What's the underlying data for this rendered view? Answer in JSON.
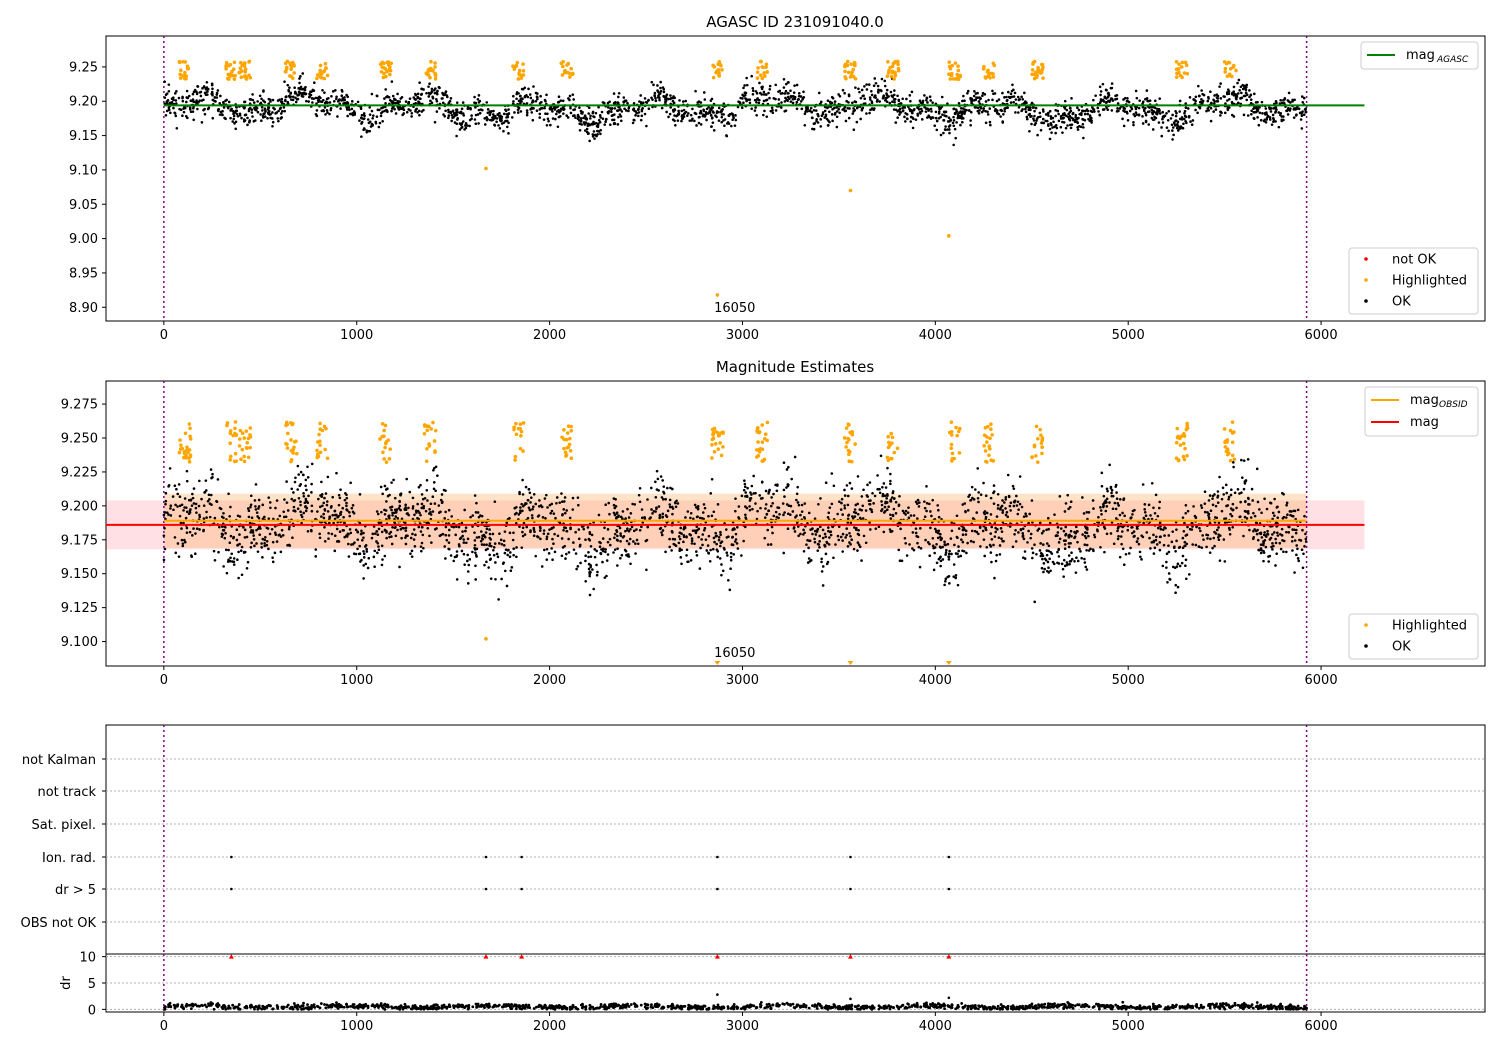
{
  "chart_data": [
    {
      "type": "scatter",
      "title": "AGASC ID 231091040.0",
      "xlabel": "",
      "ylabel": "",
      "xlim": [
        -300,
        6850
      ],
      "ylim": [
        8.88,
        9.295
      ],
      "xticks": [
        0,
        1000,
        2000,
        3000,
        4000,
        5000,
        6000
      ],
      "yticks": [
        8.9,
        8.95,
        9.0,
        9.05,
        9.1,
        9.15,
        9.2,
        9.25
      ],
      "ytick_labels": [
        "8.90",
        "8.95",
        "9.00",
        "9.05",
        "9.10",
        "9.15",
        "9.20",
        "9.25"
      ],
      "xtick_labels": [
        "0",
        "1000",
        "2000",
        "3000",
        "4000",
        "5000",
        "6000"
      ],
      "grid": false,
      "vlines": [
        0,
        5925
      ],
      "vline_color": "#800080",
      "hline": {
        "name": "mag_AGASC",
        "y": 9.194,
        "x_range": [
          0,
          6225
        ],
        "color": "#008000"
      },
      "obsid_annotation": {
        "text": "16050",
        "x": 2960
      },
      "legends": [
        {
          "placement": "upper right",
          "items": [
            {
              "label": "mag",
              "sub": "AGASC",
              "kind": "line",
              "color": "#008000"
            }
          ]
        },
        {
          "placement": "lower right",
          "items": [
            {
              "label": "not OK",
              "kind": "dot",
              "color": "#ff0000"
            },
            {
              "label": "Highlighted",
              "kind": "dot",
              "color": "#ffa500"
            },
            {
              "label": "OK",
              "kind": "dot",
              "color": "#000000"
            }
          ]
        }
      ],
      "series": [
        {
          "name": "OK",
          "color": "#000000",
          "x_range": [
            0,
            5925
          ],
          "band": [
            9.15,
            9.23
          ]
        },
        {
          "name": "Highlighted",
          "color": "#ffa500",
          "points": [
            [
              1670,
              9.102
            ],
            [
              3560,
              9.07
            ],
            [
              4070,
              9.004
            ],
            [
              2870,
              8.918
            ]
          ],
          "clusters": [
            110,
            350,
            420,
            660,
            820,
            1150,
            1380,
            1840,
            2090,
            2870,
            3100,
            3560,
            3780,
            4100,
            4280,
            4530,
            5280,
            5530
          ]
        }
      ]
    },
    {
      "type": "scatter",
      "title": "Magnitude Estimates",
      "xlim": [
        -300,
        6850
      ],
      "ylim": [
        9.082,
        9.292
      ],
      "xticks": [
        0,
        1000,
        2000,
        3000,
        4000,
        5000,
        6000
      ],
      "yticks": [
        9.1,
        9.125,
        9.15,
        9.175,
        9.2,
        9.225,
        9.25,
        9.275
      ],
      "ytick_labels": [
        "9.100",
        "9.125",
        "9.150",
        "9.175",
        "9.200",
        "9.225",
        "9.250",
        "9.275"
      ],
      "xtick_labels": [
        "0",
        "1000",
        "2000",
        "3000",
        "4000",
        "5000",
        "6000"
      ],
      "grid": false,
      "vlines": [
        0,
        5925
      ],
      "lines": [
        {
          "name": "mag_OBSID",
          "y": 9.189,
          "x_range": [
            0,
            5925
          ],
          "color": "#ffa500",
          "band": [
            9.169,
            9.209
          ]
        },
        {
          "name": "mag",
          "y": 9.186,
          "x_range": [
            -300,
            6225
          ],
          "color": "#ff0000",
          "band": [
            9.168,
            9.204
          ]
        }
      ],
      "obsid_annotation": {
        "text": "16050",
        "x": 2960
      },
      "off_scale_markers": [
        2870,
        3560,
        4070
      ],
      "legends": [
        {
          "placement": "upper right",
          "items": [
            {
              "label": "mag",
              "sub": "OBSID",
              "kind": "line",
              "color": "#ffa500"
            },
            {
              "label": "mag",
              "sub": "",
              "kind": "line",
              "color": "#ff0000"
            }
          ]
        },
        {
          "placement": "lower right",
          "items": [
            {
              "label": "Highlighted",
              "kind": "dot",
              "color": "#ffa500"
            },
            {
              "label": "OK",
              "kind": "dot",
              "color": "#000000"
            }
          ]
        }
      ]
    },
    {
      "type": "scatter",
      "title": "",
      "xlim": [
        -300,
        6850
      ],
      "xticks": [
        0,
        1000,
        2000,
        3000,
        4000,
        5000,
        6000
      ],
      "xtick_labels": [
        "0",
        "1000",
        "2000",
        "3000",
        "4000",
        "5000",
        "6000"
      ],
      "flag_rows": [
        "not Kalman",
        "not track",
        "Sat. pixel.",
        "Ion. rad.",
        "dr > 5",
        "OBS not OK"
      ],
      "flag_points": {
        "Ion. rad.": [
          350,
          1670,
          1855,
          2870,
          3560,
          4070
        ],
        "dr > 5": [
          350,
          1670,
          1855,
          2870,
          3560,
          4070
        ],
        "not Kalman": [],
        "not track": [],
        "Sat. pixel.": [],
        "OBS not OK": []
      },
      "dr_panel": {
        "ylabel": "dr",
        "yticks": [
          0,
          5,
          10
        ],
        "ytick_labels": [
          "0",
          "5",
          "10"
        ],
        "ylim": [
          -0.5,
          10.5
        ],
        "markers_at_10": [
          350,
          1670,
          1855,
          2870,
          3560,
          4070
        ],
        "outliers": [
          [
            2870,
            2.8
          ],
          [
            3560,
            2.0
          ],
          [
            4070,
            2.2
          ]
        ],
        "baseline_range": [
          0,
          1.5
        ]
      }
    }
  ]
}
